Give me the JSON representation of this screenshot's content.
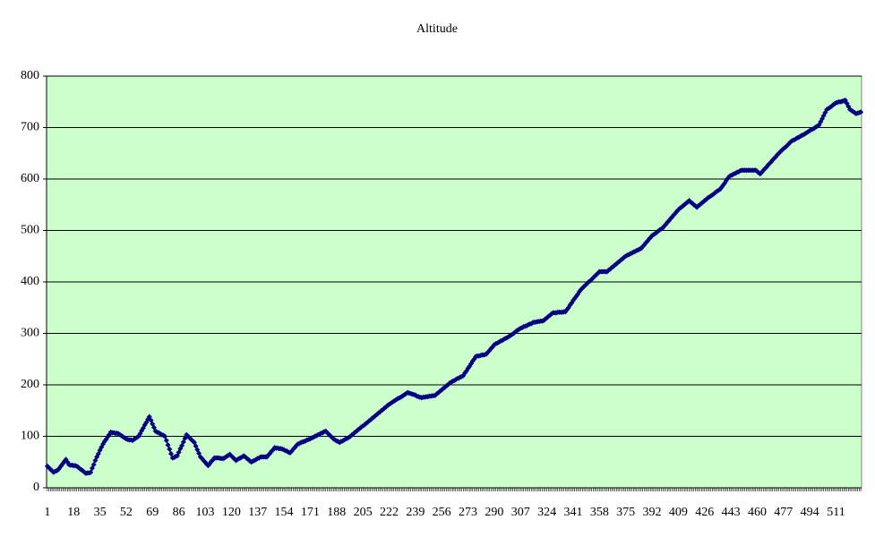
{
  "chart_data": {
    "type": "line",
    "title": "Altitude",
    "x": [
      1,
      2,
      3,
      4,
      5,
      6,
      7,
      8,
      9,
      10,
      11,
      12,
      13,
      14,
      15,
      16,
      17,
      18,
      19,
      20,
      21,
      22,
      23,
      24,
      25,
      26,
      27,
      28,
      29,
      30,
      31,
      32,
      33,
      34,
      35,
      36,
      37,
      38,
      39,
      40,
      41,
      42,
      43,
      44,
      45,
      46,
      47,
      48,
      49,
      50,
      51,
      52,
      53,
      54,
      55,
      56,
      57,
      58,
      59,
      60,
      61,
      62,
      63,
      64,
      65,
      66,
      67,
      68,
      69,
      70,
      71,
      72,
      73,
      74,
      75,
      76,
      77,
      78,
      79,
      80,
      81,
      82,
      83,
      84,
      85,
      86,
      87,
      88,
      89,
      90,
      91,
      92,
      93,
      94,
      95,
      96,
      97,
      98,
      99,
      100,
      101,
      102,
      103,
      104,
      105,
      106,
      107,
      108,
      109,
      110,
      111,
      112,
      113,
      114,
      115,
      116,
      117,
      118,
      119,
      120,
      121,
      122,
      123,
      124,
      125,
      126,
      127,
      128,
      129,
      130,
      131,
      132,
      133,
      134,
      135,
      136,
      137,
      138,
      139,
      140,
      141,
      142,
      143,
      144,
      145,
      146,
      147,
      148,
      149,
      150,
      151,
      152,
      153,
      154,
      155,
      156,
      157,
      158,
      159,
      160,
      161,
      162,
      163,
      164,
      165,
      166,
      167,
      168,
      169,
      170,
      171,
      172,
      173,
      174,
      175,
      176,
      177,
      178,
      179,
      180,
      181,
      182,
      183,
      184,
      185,
      186,
      187,
      188,
      189,
      190,
      191,
      192,
      193,
      194,
      195,
      196,
      197,
      198,
      199,
      200,
      201,
      202,
      203,
      204,
      205,
      206,
      207,
      208,
      209,
      210,
      211,
      212,
      213,
      214,
      215,
      216,
      217,
      218,
      219,
      220,
      221,
      222,
      223,
      224,
      225,
      226,
      227,
      228,
      229,
      230,
      231,
      232,
      233,
      234,
      235,
      236,
      237,
      238,
      239,
      240,
      241,
      242,
      243,
      244,
      245,
      246,
      247,
      248,
      249,
      250,
      251,
      252,
      253,
      254,
      255,
      256,
      257,
      258,
      259,
      260,
      261,
      262,
      263,
      264,
      265,
      266,
      267,
      268,
      269,
      270,
      271,
      272,
      273,
      274,
      275,
      276,
      277,
      278,
      279,
      280,
      281,
      282,
      283,
      284,
      285,
      286,
      287,
      288,
      289,
      290,
      291,
      292,
      293,
      294,
      295,
      296,
      297,
      298,
      299,
      300,
      301,
      302,
      303,
      304,
      305,
      306,
      307,
      308,
      309,
      310,
      311,
      312,
      313,
      314,
      315,
      316,
      317,
      318,
      319,
      320,
      321,
      322,
      323,
      324,
      325,
      326,
      327,
      328,
      329,
      330,
      331,
      332,
      333,
      334,
      335,
      336,
      337,
      338,
      339,
      340,
      341,
      342,
      343,
      344,
      345,
      346,
      347,
      348,
      349,
      350,
      351,
      352,
      353,
      354,
      355,
      356,
      357,
      358,
      359,
      360,
      361,
      362,
      363,
      364,
      365,
      366,
      367,
      368,
      369,
      370,
      371,
      372,
      373,
      374,
      375,
      376,
      377,
      378,
      379,
      380,
      381,
      382,
      383,
      384,
      385,
      386,
      387,
      388,
      389,
      390,
      391,
      392,
      393,
      394,
      395,
      396,
      397,
      398,
      399,
      400,
      401,
      402,
      403,
      404,
      405,
      406,
      407,
      408,
      409,
      410,
      411,
      412,
      413,
      414,
      415,
      416,
      417,
      418,
      419,
      420,
      421,
      422,
      423,
      424,
      425,
      426,
      427,
      428,
      429,
      430,
      431,
      432,
      433,
      434,
      435,
      436,
      437,
      438,
      439,
      440,
      441,
      442,
      443,
      444,
      445,
      446,
      447,
      448,
      449,
      450,
      451,
      452,
      453,
      454,
      455,
      456,
      457,
      458,
      459,
      460,
      461,
      462,
      463,
      464,
      465,
      466,
      467,
      468,
      469,
      470,
      471,
      472,
      473,
      474,
      475,
      476,
      477,
      478,
      479,
      480,
      481,
      482,
      483,
      484,
      485,
      486,
      487,
      488,
      489,
      490,
      491,
      492,
      493,
      494,
      495,
      496,
      497,
      498,
      499,
      500,
      501,
      502,
      503,
      504,
      505,
      506,
      507,
      508,
      509,
      510,
      511,
      512,
      513,
      514,
      515,
      516,
      517,
      518,
      519,
      520,
      521,
      522,
      523,
      524,
      525,
      526,
      527
    ],
    "series": [
      {
        "name": "Altitude",
        "color": "#000080",
        "values": [
          42,
          39,
          36,
          33,
          30,
          32,
          33,
          35,
          39,
          43,
          47,
          51,
          55,
          50,
          45,
          44,
          44,
          43,
          43,
          42,
          40,
          37,
          35,
          33,
          30,
          28,
          29,
          29,
          30,
          38,
          45,
          53,
          60,
          66,
          73,
          79,
          85,
          90,
          94,
          99,
          103,
          108,
          107,
          107,
          106,
          106,
          105,
          103,
          101,
          99,
          97,
          95,
          94,
          93,
          93,
          92,
          94,
          96,
          98,
          100,
          105,
          111,
          116,
          122,
          127,
          133,
          138,
          131,
          124,
          117,
          110,
          108,
          107,
          105,
          103,
          102,
          100,
          92,
          83,
          75,
          66,
          58,
          59,
          61,
          62,
          69,
          76,
          82,
          89,
          96,
          103,
          100,
          97,
          94,
          91,
          88,
          81,
          74,
          67,
          60,
          57,
          53,
          50,
          46,
          43,
          47,
          51,
          54,
          58,
          58,
          58,
          58,
          57,
          57,
          57,
          59,
          61,
          63,
          65,
          62,
          59,
          56,
          53,
          55,
          57,
          58,
          60,
          62,
          60,
          57,
          55,
          52,
          50,
          52,
          53,
          55,
          57,
          58,
          60,
          60,
          60,
          60,
          60,
          64,
          67,
          71,
          74,
          78,
          77,
          77,
          76,
          76,
          75,
          74,
          72,
          71,
          69,
          68,
          71,
          75,
          78,
          82,
          85,
          86,
          88,
          89,
          90,
          91,
          93,
          94,
          95,
          97,
          98,
          100,
          101,
          103,
          104,
          106,
          107,
          109,
          110,
          107,
          104,
          101,
          98,
          95,
          93,
          91,
          90,
          88,
          90,
          91,
          93,
          95,
          96,
          98,
          100,
          103,
          105,
          108,
          110,
          113,
          115,
          118,
          120,
          122,
          125,
          127,
          130,
          132,
          135,
          137,
          140,
          142,
          145,
          147,
          150,
          152,
          155,
          157,
          160,
          162,
          164,
          166,
          168,
          170,
          172,
          174,
          175,
          177,
          179,
          181,
          183,
          185,
          184,
          183,
          182,
          181,
          180,
          178,
          177,
          176,
          175,
          176,
          176,
          177,
          177,
          178,
          178,
          179,
          179,
          180,
          183,
          185,
          188,
          190,
          193,
          195,
          198,
          200,
          203,
          205,
          207,
          208,
          210,
          212,
          213,
          215,
          216,
          218,
          223,
          227,
          232,
          236,
          241,
          246,
          250,
          255,
          256,
          256,
          257,
          258,
          258,
          259,
          260,
          264,
          267,
          271,
          274,
          278,
          280,
          281,
          283,
          285,
          286,
          288,
          290,
          291,
          293,
          295,
          297,
          299,
          301,
          304,
          306,
          308,
          310,
          311,
          313,
          314,
          315,
          317,
          318,
          319,
          321,
          322,
          322,
          323,
          323,
          324,
          324,
          325,
          328,
          330,
          333,
          335,
          338,
          340,
          340,
          340,
          341,
          341,
          341,
          341,
          342,
          342,
          346,
          350,
          355,
          359,
          364,
          368,
          372,
          376,
          381,
          385,
          388,
          391,
          394,
          397,
          400,
          402,
          405,
          408,
          411,
          414,
          417,
          420,
          420,
          420,
          420,
          420,
          420,
          423,
          425,
          428,
          430,
          433,
          435,
          438,
          440,
          443,
          445,
          448,
          450,
          452,
          453,
          455,
          456,
          458,
          459,
          461,
          462,
          464,
          465,
          469,
          472,
          476,
          479,
          483,
          486,
          490,
          492,
          494,
          496,
          499,
          501,
          503,
          505,
          509,
          512,
          516,
          519,
          523,
          526,
          530,
          533,
          537,
          540,
          543,
          545,
          548,
          550,
          553,
          555,
          558,
          555,
          553,
          550,
          548,
          545,
          548,
          550,
          553,
          555,
          558,
          560,
          563,
          565,
          567,
          569,
          571,
          574,
          576,
          578,
          580,
          584,
          588,
          592,
          597,
          601,
          605,
          607,
          608,
          610,
          611,
          613,
          614,
          616,
          617,
          617,
          617,
          617,
          617,
          617,
          617,
          617,
          617,
          617,
          615,
          612,
          610,
          613,
          617,
          620,
          623,
          627,
          630,
          633,
          637,
          640,
          643,
          647,
          650,
          653,
          656,
          659,
          661,
          664,
          667,
          670,
          673,
          675,
          676,
          678,
          680,
          681,
          683,
          685,
          686,
          688,
          690,
          692,
          694,
          696,
          697,
          699,
          701,
          703,
          705,
          711,
          717,
          723,
          729,
          735,
          737,
          739,
          741,
          744,
          746,
          748,
          749,
          750,
          750,
          751,
          752,
          753,
          747,
          741,
          735,
          733,
          731,
          729,
          727,
          728,
          729,
          730
        ]
      }
    ],
    "xlim": [
      0.5,
      527.5
    ],
    "xticks": [
      1,
      18,
      35,
      52,
      69,
      86,
      103,
      120,
      137,
      154,
      171,
      188,
      205,
      222,
      239,
      256,
      273,
      290,
      307,
      324,
      341,
      358,
      375,
      392,
      409,
      426,
      443,
      460,
      477,
      494,
      511
    ],
    "ylim": [
      0,
      800
    ],
    "yticks": [
      0,
      100,
      200,
      300,
      400,
      500,
      600,
      700,
      800
    ],
    "grid": true,
    "plot_background": "#ccffcc"
  }
}
